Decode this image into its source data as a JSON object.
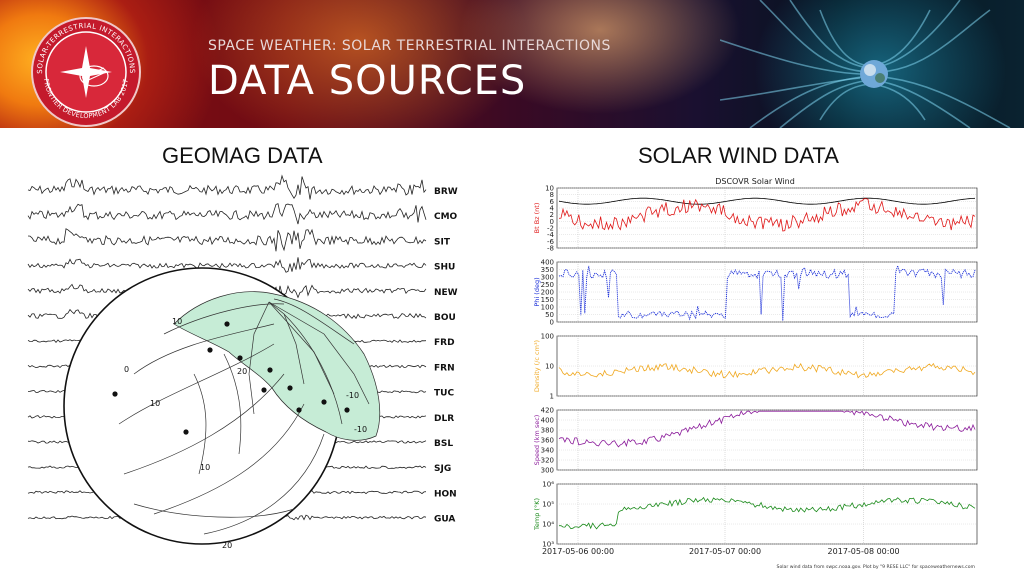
{
  "header": {
    "subtitle": "SPACE WEATHER: SOLAR TERRESTRIAL INTERACTIONS",
    "title": "DATA SOURCES",
    "badge": {
      "ring_text_top": "SOLAR-TERRESTRIAL INTERACTIONS",
      "ring_text_bottom": "FRONTIER DEVELOPMENT LAB 2017",
      "icon": "sun-star-icon"
    }
  },
  "panels": {
    "geomag": {
      "title": "GEOMAG DATA",
      "stations": [
        "BRW",
        "CMO",
        "SIT",
        "SHU",
        "NEW",
        "BOU",
        "FRD",
        "FRN",
        "TUC",
        "DLR",
        "BSL",
        "SJG",
        "HON",
        "GUA"
      ],
      "contour_labels": [
        "10",
        "0",
        "20",
        "10",
        "10",
        "20",
        "-10",
        "-10"
      ]
    },
    "solar": {
      "title": "SOLAR WIND DATA",
      "chart_data": {
        "type": "line",
        "title": "DSCOVR Solar Wind",
        "x_ticks": [
          "2017-05-06 00:00",
          "2017-05-07 00:00",
          "2017-05-08 00:00"
        ],
        "footer": "Solar wind data from swpc.noaa.gov. Plot by \"9 RESE LLC\" for spaceweathernews.com",
        "panels": [
          {
            "ylabel": "Bt Bz (nt)",
            "ylim": [
              -8,
              10
            ],
            "yticks": [
              "10",
              "8",
              "6",
              "4",
              "2",
              "0",
              "-2",
              "-4",
              "-6",
              "-8"
            ],
            "series_colors": [
              "#000000",
              "#e01818"
            ]
          },
          {
            "ylabel": "Phi (deg)",
            "ylim": [
              0,
              400
            ],
            "yticks": [
              "400",
              "350",
              "300",
              "250",
              "200",
              "150",
              "100",
              "50",
              "0"
            ],
            "series_colors": [
              "#1a2ed8"
            ]
          },
          {
            "ylabel": "Density (/c cm³)",
            "scale": "log",
            "ylim": [
              1,
              100
            ],
            "yticks": [
              "100",
              "10",
              "1"
            ],
            "series_colors": [
              "#f0a820"
            ]
          },
          {
            "ylabel": "Speed (km sec)",
            "ylim": [
              300,
              420
            ],
            "yticks": [
              "420",
              "400",
              "380",
              "360",
              "340",
              "320",
              "300"
            ],
            "series_colors": [
              "#8a1a9a"
            ]
          },
          {
            "ylabel": "Temp (°K)",
            "scale": "log",
            "ylim": [
              1000,
              1000000
            ],
            "yticks": [
              "10⁶",
              "10⁵",
              "10⁴",
              "10³"
            ],
            "series_colors": [
              "#1a8a1a"
            ]
          }
        ]
      }
    }
  }
}
